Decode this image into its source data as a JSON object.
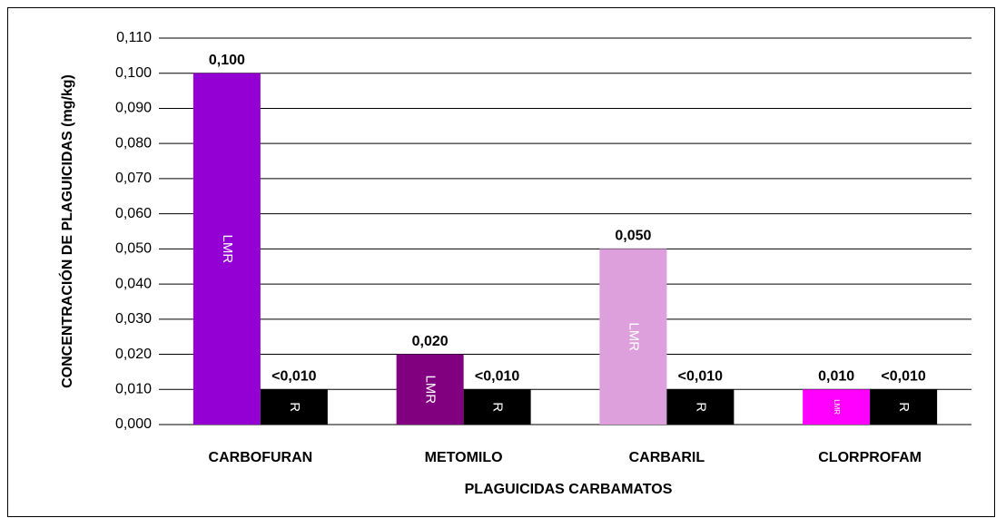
{
  "chart_data": {
    "type": "bar",
    "categories": [
      "CARBOFURAN",
      "METOMILO",
      "CARBARIL",
      "CLORPROFAM"
    ],
    "series": [
      {
        "name": "LMR",
        "colors": [
          "#9400d3",
          "#800080",
          "#dda0dd",
          "#ff00ff"
        ],
        "values": [
          0.1,
          0.02,
          0.05,
          0.01
        ],
        "value_labels": [
          "0,100",
          "0,020",
          "0,050",
          "0,010"
        ]
      },
      {
        "name": "R",
        "color": "#000000",
        "values": [
          0.01,
          0.01,
          0.01,
          0.01
        ],
        "value_labels": [
          "<0,010",
          "<0,010",
          "<0,010",
          "<0,010"
        ]
      }
    ],
    "xlabel": "PLAGUICIDAS CARBAMATOS",
    "ylabel": "CONCENTRACIÓN DE PLAGUICIDAS (mg/kg)",
    "ylim": [
      0,
      0.11
    ],
    "yticks": [
      {
        "value": 0,
        "label": "0,000"
      },
      {
        "value": 0.01,
        "label": "0,010"
      },
      {
        "value": 0.02,
        "label": "0,020"
      },
      {
        "value": 0.03,
        "label": "0,030"
      },
      {
        "value": 0.04,
        "label": "0,040"
      },
      {
        "value": 0.05,
        "label": "0,050"
      },
      {
        "value": 0.06,
        "label": "0,060"
      },
      {
        "value": 0.07,
        "label": "0,070"
      },
      {
        "value": 0.08,
        "label": "0,080"
      },
      {
        "value": 0.09,
        "label": "0,090"
      },
      {
        "value": 0.1,
        "label": "0,100"
      },
      {
        "value": 0.11,
        "label": "0,110"
      }
    ],
    "grid": true
  }
}
